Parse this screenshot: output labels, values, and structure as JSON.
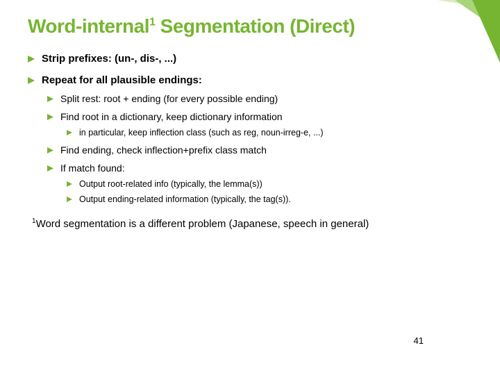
{
  "colors": {
    "accent": "#76b531",
    "text": "#000000",
    "background": "#ffffff",
    "deco_light": "#d7eec0",
    "deco_mid": "#a9d57a"
  },
  "title": {
    "pre": "Word-internal",
    "sup": "1",
    "post": " Segmentation (Direct)",
    "fontsize": 28,
    "color": "#76b531"
  },
  "bullets": {
    "fill": "#76b531",
    "lvl1": [
      {
        "text": "Strip prefixes: (un-, dis-, ...)"
      },
      {
        "text": "Repeat for all plausible endings:",
        "lvl2": [
          {
            "text": "Split rest: root + ending (for every possible ending)"
          },
          {
            "text": "Find root in a dictionary, keep dictionary information",
            "lvl3": [
              {
                "text": "in particular, keep inflection class (such as reg, noun-irreg-e, ...)"
              }
            ]
          },
          {
            "text": "Find ending, check inflection+prefix class match"
          },
          {
            "text": "If match found:",
            "lvl3": [
              {
                "text": "Output root-related info (typically, the lemma(s))"
              },
              {
                "text": "Output ending-related information (typically, the tag(s))."
              }
            ]
          }
        ]
      }
    ]
  },
  "footnote": {
    "sup": "1",
    "text": "Word segmentation is a different problem (Japanese, speech in general)",
    "fontsize": 15
  },
  "pagenum": "41"
}
